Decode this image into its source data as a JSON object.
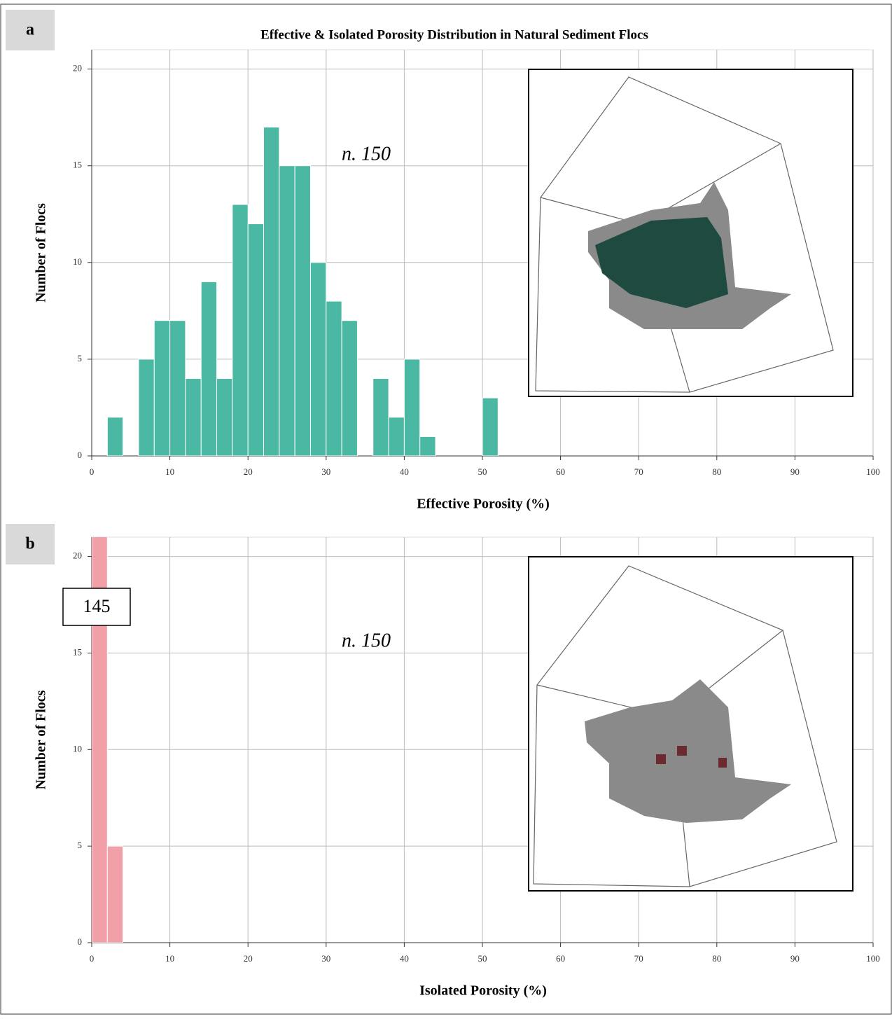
{
  "chart_data": [
    {
      "type": "histogram",
      "title": "Effective & Isolated Porosity Distribution in Natural Sediment Flocs",
      "panel_label": "a",
      "annotation": "n. 150",
      "xlabel": "Effective Porosity (%)",
      "ylabel": "Number of Flocs",
      "bins": [
        0,
        2,
        4,
        6,
        8,
        10,
        12,
        14,
        16,
        18,
        20,
        22,
        24,
        26,
        28,
        30,
        32,
        34,
        36,
        38,
        40,
        42,
        44,
        46,
        48,
        50,
        52
      ],
      "values": [
        0,
        2,
        0,
        5,
        7,
        7,
        4,
        9,
        4,
        13,
        12,
        17,
        15,
        15,
        10,
        8,
        7,
        0,
        4,
        2,
        5,
        1,
        0,
        0,
        0,
        3
      ],
      "color": "#4ab8a2",
      "xlim": [
        0,
        100
      ],
      "ylim": [
        0,
        21
      ],
      "xticks": [
        0,
        10,
        20,
        30,
        40,
        50,
        60,
        70,
        80,
        90,
        100
      ],
      "yticks": [
        0,
        5,
        10,
        15,
        20
      ],
      "grid": true
    },
    {
      "type": "histogram",
      "panel_label": "b",
      "annotation": "n. 150",
      "xlabel": "Isolated Porosity (%)",
      "ylabel": "Number of Flocs",
      "bins": [
        0,
        2,
        4
      ],
      "values": [
        145,
        5
      ],
      "value_labels": [
        "145",
        null
      ],
      "color": "#f0a0a6",
      "xlim": [
        0,
        100
      ],
      "ylim": [
        0,
        21
      ],
      "xticks": [
        0,
        10,
        20,
        30,
        40,
        50,
        60,
        70,
        80,
        90,
        100
      ],
      "yticks": [
        0,
        5,
        10,
        15,
        20
      ],
      "grid": true
    }
  ]
}
